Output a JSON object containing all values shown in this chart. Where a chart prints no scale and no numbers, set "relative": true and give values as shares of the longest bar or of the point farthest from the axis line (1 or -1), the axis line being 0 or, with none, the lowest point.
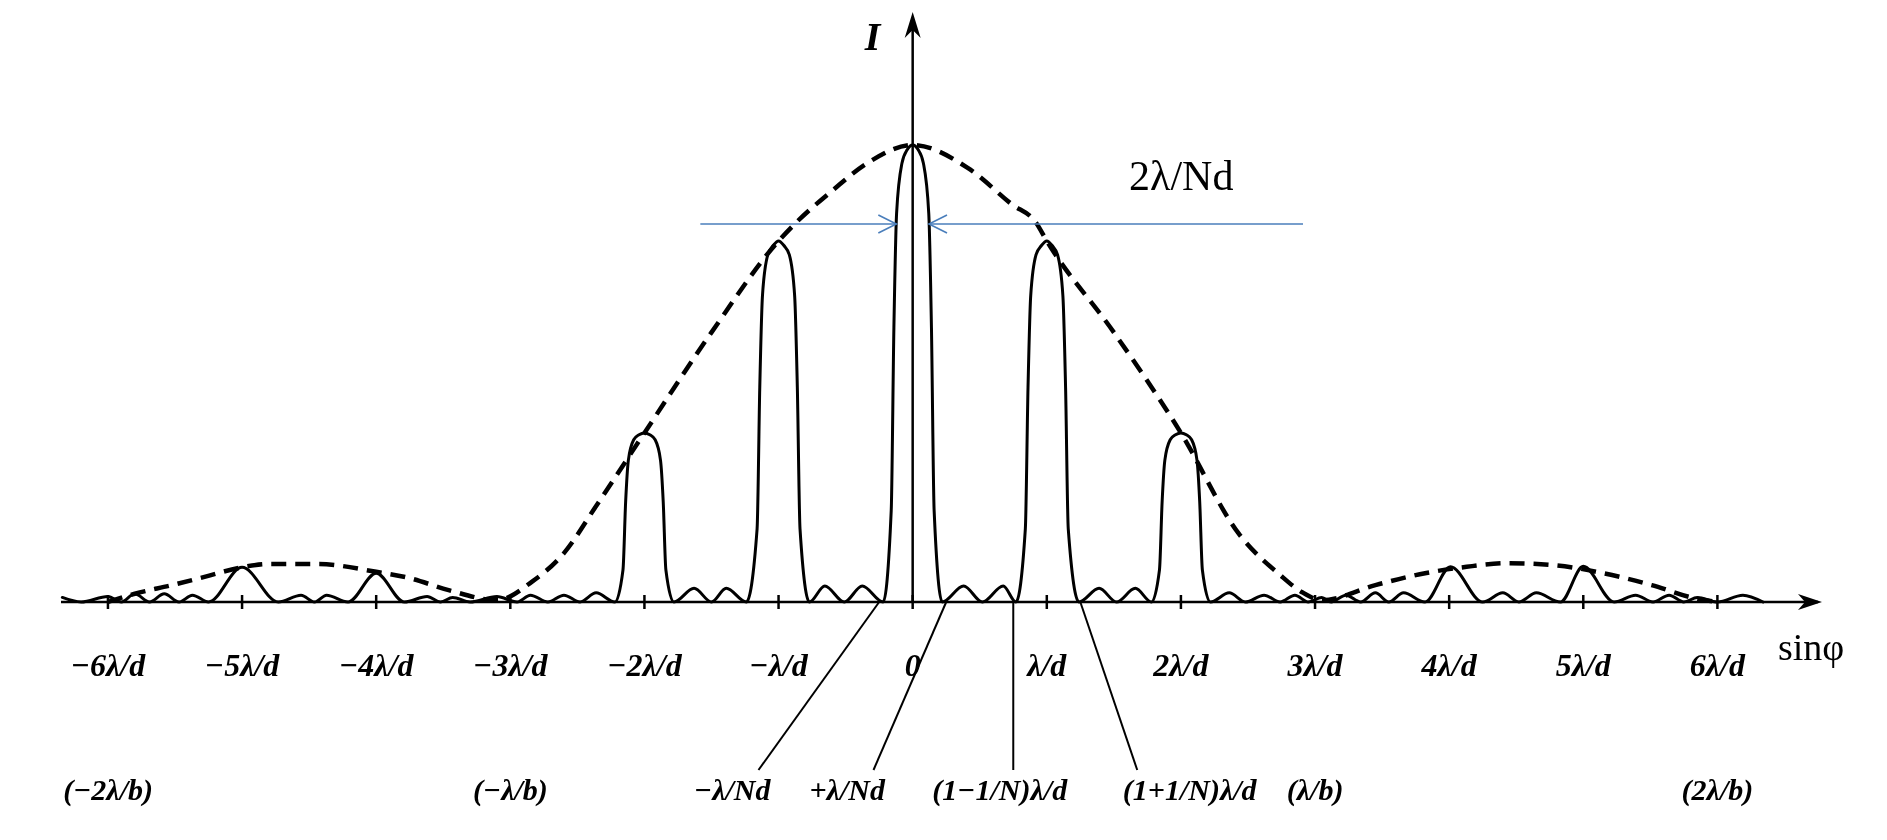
{
  "chart_data": {
    "type": "line",
    "relative": true,
    "xlabel": "sinφ",
    "ylabel": "I",
    "xlim": [
      -6.35,
      6.75
    ],
    "xticks": [
      {
        "value": -6,
        "label": "−6λ/d"
      },
      {
        "value": -5,
        "label": "−5λ/d"
      },
      {
        "value": -4,
        "label": "−4λ/d"
      },
      {
        "value": -3,
        "label": "−3λ/d"
      },
      {
        "value": -2,
        "label": "−2λ/d"
      },
      {
        "value": -1,
        "label": "−λ/d"
      },
      0,
      {
        "value": 1,
        "label": "λ/d"
      },
      {
        "value": 2,
        "label": "2λ/d"
      },
      {
        "value": 3,
        "label": "3λ/d"
      },
      {
        "value": 4,
        "label": "4λ/d"
      },
      {
        "value": 5,
        "label": "5λ/d"
      },
      {
        "value": 6,
        "label": "6λ/d"
      }
    ],
    "x2lim": [
      -2.117,
      2.25
    ],
    "x2ticks": [
      {
        "value": -2,
        "label": "(−2λ/b)"
      },
      {
        "value": -1,
        "label": "(−λ/b)"
      },
      {
        "value": 1,
        "label": "(λ/b)"
      },
      {
        "value": 2,
        "label": "(2λ/b)"
      }
    ],
    "series": [
      {
        "color": "#000000",
        "line_style": "solid",
        "x": [
          -6.34,
          -6.2,
          -6.0,
          -5.9,
          -5.8,
          -5.69,
          -5.58,
          -5.47,
          -5.37,
          -5.25,
          -5.0,
          -4.73,
          -4.56,
          -4.46,
          -4.37,
          -4.21,
          -4.0,
          -3.79,
          -3.62,
          -3.52,
          -3.43,
          -3.3,
          -3.1,
          -2.95,
          -2.85,
          -2.72,
          -2.6,
          -2.48,
          -2.36,
          -2.22,
          -2.16,
          -2.14,
          -2.12,
          -2.08,
          -2.04,
          -2.0,
          -1.96,
          -1.92,
          -1.88,
          -1.86,
          -1.84,
          -1.78,
          -1.63,
          -1.5,
          -1.39,
          -1.24,
          -1.16,
          -1.14,
          -1.12,
          -1.08,
          -1.04,
          -1.0,
          -0.96,
          -0.92,
          -0.88,
          -0.86,
          -0.84,
          -0.77,
          -0.655,
          -0.51,
          -0.376,
          -0.22,
          -0.16,
          -0.14,
          -0.12,
          -0.08,
          -0.04,
          0,
          0.04,
          0.08,
          0.12,
          0.14,
          0.16,
          0.22,
          0.38,
          0.52,
          0.675,
          0.77,
          0.84,
          0.86,
          0.88,
          0.92,
          0.96,
          1.0,
          1.04,
          1.08,
          1.12,
          1.14,
          1.16,
          1.24,
          1.39,
          1.52,
          1.66,
          1.78,
          1.84,
          1.86,
          1.88,
          1.92,
          1.96,
          2.0,
          2.04,
          2.08,
          2.12,
          2.14,
          2.16,
          2.22,
          2.36,
          2.48,
          2.62,
          2.74,
          2.85,
          2.95,
          3.05,
          3.12,
          3.23,
          3.34,
          3.45,
          3.55,
          3.66,
          3.82,
          4.01,
          4.25,
          4.4,
          4.52,
          4.65,
          4.83,
          5.0,
          5.23,
          5.39,
          5.52,
          5.64,
          5.75,
          5.85,
          6.0,
          6.19,
          6.34
        ],
        "values": [
          0.01,
          0,
          0.012,
          0,
          0.018,
          0,
          0.018,
          0,
          0.015,
          0,
          0.076,
          0,
          0.015,
          0,
          0.015,
          0,
          0.063,
          0,
          0.012,
          0,
          0.01,
          0,
          0.012,
          0,
          0.015,
          0,
          0.015,
          0,
          0.02,
          0,
          0.07,
          0.22,
          0.31,
          0.355,
          0.366,
          0.37,
          0.366,
          0.355,
          0.31,
          0.22,
          0.07,
          0,
          0.03,
          0,
          0.03,
          0,
          0.16,
          0.47,
          0.67,
          0.76,
          0.78,
          0.79,
          0.78,
          0.76,
          0.67,
          0.47,
          0.16,
          0,
          0.035,
          0,
          0.035,
          0,
          0.2,
          0.6,
          0.85,
          0.96,
          0.99,
          1,
          0.99,
          0.96,
          0.85,
          0.6,
          0.2,
          0,
          0.035,
          0,
          0.035,
          0,
          0.16,
          0.47,
          0.67,
          0.76,
          0.78,
          0.79,
          0.78,
          0.76,
          0.67,
          0.47,
          0.16,
          0,
          0.03,
          0,
          0.03,
          0,
          0.07,
          0.22,
          0.31,
          0.355,
          0.366,
          0.37,
          0.366,
          0.355,
          0.31,
          0.22,
          0.07,
          0,
          0.02,
          0,
          0.015,
          0,
          0.015,
          0,
          0.01,
          0,
          0.015,
          0,
          0.02,
          0,
          0.02,
          0,
          0.077,
          0,
          0.02,
          0,
          0.02,
          0,
          0.078,
          0,
          0.015,
          0,
          0.015,
          0,
          0.01,
          0,
          0.015,
          0
        ]
      },
      {
        "color": "#000000",
        "line_style": "dashed",
        "x": [
          -6.0,
          -5.8,
          -5.52,
          -5.28,
          -5.0,
          -4.8,
          -4.43,
          -4.0,
          -3.76,
          -3.46,
          -3.1,
          -2.84,
          -2.6,
          -2.36,
          -2.0,
          -1.5,
          -1.0,
          -0.87,
          -0.6,
          -0.34,
          0,
          0.41,
          0.74,
          0.92,
          1.0,
          1.5,
          2.0,
          2.43,
          2.74,
          2.9,
          3.05,
          3.45,
          3.82,
          4.13,
          4.44,
          4.77,
          5.15,
          5.51,
          5.82,
          6.0
        ],
        "values": [
          0,
          0.018,
          0.037,
          0.055,
          0.076,
          0.083,
          0.083,
          0.066,
          0.053,
          0.026,
          0.004,
          0.044,
          0.107,
          0.21,
          0.37,
          0.59,
          0.79,
          0.83,
          0.9,
          0.96,
          1,
          0.95,
          0.87,
          0.83,
          0.79,
          0.59,
          0.37,
          0.15,
          0.059,
          0.022,
          0.004,
          0.037,
          0.063,
          0.077,
          0.085,
          0.081,
          0.063,
          0.037,
          0.009,
          0
        ]
      }
    ],
    "annotations": [
      "2λ/Nd",
      {
        "text": "−λ/Nd",
        "x": -0.25,
        "y": 0
      },
      {
        "text": "+λ/Nd",
        "x": 0.25,
        "y": 0
      },
      {
        "text": "(1−1/N)λ/d",
        "x": 0.75,
        "y": 0
      },
      {
        "text": "(1+1/N)λ/d",
        "x": 1.25,
        "y": 0
      }
    ]
  }
}
